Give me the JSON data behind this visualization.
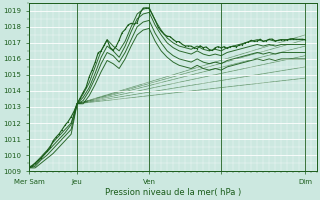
{
  "xlabel": "Pression niveau de la mer( hPa )",
  "ylim": [
    1009,
    1019.5
  ],
  "xlim": [
    0,
    96
  ],
  "yticks": [
    1009,
    1010,
    1011,
    1012,
    1013,
    1014,
    1015,
    1016,
    1017,
    1018,
    1019
  ],
  "xtick_positions": [
    0,
    16,
    40,
    64,
    92
  ],
  "xtick_labels": [
    "Mer Sam",
    "Jeu",
    "Ven",
    "",
    "Dim"
  ],
  "bg_color": "#cce8e0",
  "line_color": "#1a5c1a",
  "fan_lines": [
    {
      "x": [
        16,
        92
      ],
      "y": [
        1013.2,
        1014.8
      ]
    },
    {
      "x": [
        16,
        92
      ],
      "y": [
        1013.2,
        1015.5
      ]
    },
    {
      "x": [
        16,
        92
      ],
      "y": [
        1013.2,
        1016.2
      ]
    },
    {
      "x": [
        16,
        92
      ],
      "y": [
        1013.2,
        1016.8
      ]
    },
    {
      "x": [
        16,
        92
      ],
      "y": [
        1013.2,
        1017.2
      ]
    },
    {
      "x": [
        16,
        92
      ],
      "y": [
        1013.2,
        1017.5
      ]
    }
  ],
  "ensemble_lines": [
    {
      "x": [
        0,
        2,
        4,
        6,
        8,
        10,
        12,
        14,
        16,
        18,
        20,
        22,
        24,
        26,
        28,
        30,
        32,
        34,
        36,
        38,
        40,
        42,
        44,
        46,
        48,
        50,
        52,
        54,
        56,
        58,
        60,
        62,
        64,
        66,
        68,
        70,
        72,
        74,
        76,
        78,
        80,
        82,
        84,
        86,
        88,
        90,
        92
      ],
      "y": [
        1009.2,
        1009.5,
        1009.9,
        1010.3,
        1010.8,
        1011.2,
        1011.6,
        1012.0,
        1013.2,
        1013.8,
        1014.5,
        1015.5,
        1016.5,
        1017.2,
        1016.8,
        1016.5,
        1017.1,
        1018.0,
        1018.8,
        1019.1,
        1019.2,
        1018.4,
        1017.8,
        1017.3,
        1017.0,
        1016.8,
        1016.7,
        1016.6,
        1016.8,
        1016.6,
        1016.5,
        1016.6,
        1016.5,
        1016.7,
        1016.8,
        1016.9,
        1017.0,
        1017.1,
        1017.2,
        1017.1,
        1017.2,
        1017.1,
        1017.2,
        1017.2,
        1017.2,
        1017.2,
        1017.2
      ]
    },
    {
      "x": [
        0,
        2,
        4,
        6,
        8,
        10,
        12,
        14,
        16,
        18,
        20,
        22,
        24,
        26,
        28,
        30,
        32,
        34,
        36,
        38,
        40,
        42,
        44,
        46,
        48,
        50,
        52,
        54,
        56,
        58,
        60,
        62,
        64,
        66,
        68,
        70,
        72,
        74,
        76,
        78,
        80,
        82,
        84,
        86,
        88,
        90,
        92
      ],
      "y": [
        1009.2,
        1009.4,
        1009.8,
        1010.2,
        1010.6,
        1011.0,
        1011.4,
        1011.9,
        1013.2,
        1013.6,
        1014.2,
        1015.1,
        1016.1,
        1016.8,
        1016.5,
        1016.1,
        1016.8,
        1017.7,
        1018.5,
        1018.8,
        1018.9,
        1018.1,
        1017.5,
        1017.0,
        1016.7,
        1016.5,
        1016.4,
        1016.3,
        1016.5,
        1016.3,
        1016.2,
        1016.3,
        1016.2,
        1016.4,
        1016.5,
        1016.6,
        1016.7,
        1016.8,
        1016.9,
        1016.8,
        1016.9,
        1016.8,
        1016.9,
        1016.9,
        1016.9,
        1016.9,
        1016.9
      ]
    },
    {
      "x": [
        0,
        2,
        4,
        6,
        8,
        10,
        12,
        14,
        16,
        18,
        20,
        22,
        24,
        26,
        28,
        30,
        32,
        34,
        36,
        38,
        40,
        42,
        44,
        46,
        48,
        50,
        52,
        54,
        56,
        58,
        60,
        62,
        64,
        66,
        68,
        70,
        72,
        74,
        76,
        78,
        80,
        82,
        84,
        86,
        88,
        90,
        92
      ],
      "y": [
        1009.2,
        1009.3,
        1009.7,
        1010.0,
        1010.4,
        1010.8,
        1011.2,
        1011.6,
        1013.2,
        1013.4,
        1014.0,
        1014.8,
        1015.7,
        1016.4,
        1016.2,
        1015.8,
        1016.4,
        1017.2,
        1018.0,
        1018.3,
        1018.4,
        1017.6,
        1017.0,
        1016.5,
        1016.2,
        1016.0,
        1015.9,
        1015.8,
        1016.0,
        1015.8,
        1015.7,
        1015.8,
        1015.7,
        1015.9,
        1016.0,
        1016.1,
        1016.2,
        1016.3,
        1016.4,
        1016.3,
        1016.4,
        1016.3,
        1016.4,
        1016.4,
        1016.4,
        1016.4,
        1016.4
      ]
    },
    {
      "x": [
        0,
        2,
        4,
        6,
        8,
        10,
        12,
        14,
        16,
        18,
        20,
        22,
        24,
        26,
        28,
        30,
        32,
        34,
        36,
        38,
        40,
        42,
        44,
        46,
        48,
        50,
        52,
        54,
        56,
        58,
        60,
        62,
        64,
        66,
        68,
        70,
        72,
        74,
        76,
        78,
        80,
        82,
        84,
        86,
        88,
        90,
        92
      ],
      "y": [
        1009.2,
        1009.2,
        1009.5,
        1009.8,
        1010.1,
        1010.5,
        1010.9,
        1011.3,
        1013.2,
        1013.2,
        1013.7,
        1014.4,
        1015.2,
        1015.9,
        1015.7,
        1015.4,
        1016.0,
        1016.8,
        1017.5,
        1017.8,
        1017.9,
        1017.1,
        1016.5,
        1016.1,
        1015.8,
        1015.6,
        1015.5,
        1015.4,
        1015.6,
        1015.4,
        1015.3,
        1015.4,
        1015.3,
        1015.5,
        1015.6,
        1015.7,
        1015.8,
        1015.9,
        1016.0,
        1015.9,
        1016.0,
        1015.9,
        1016.0,
        1016.0,
        1016.0,
        1016.0,
        1016.0
      ]
    }
  ],
  "main_line_x": [
    0,
    1,
    2,
    3,
    4,
    5,
    6,
    7,
    8,
    9,
    10,
    11,
    12,
    13,
    14,
    15,
    16,
    17,
    18,
    19,
    20,
    21,
    22,
    23,
    24,
    25,
    26,
    27,
    28,
    29,
    30,
    31,
    32,
    33,
    34,
    35,
    36,
    37,
    38,
    39,
    40,
    41,
    42,
    43,
    44,
    45,
    46,
    47,
    48,
    49,
    50,
    51,
    52,
    53,
    54,
    55,
    56,
    57,
    58,
    59,
    60,
    61,
    62,
    63,
    64,
    65,
    66,
    67,
    68,
    69,
    70,
    71,
    72,
    73,
    74,
    75,
    76,
    77,
    78,
    79,
    80,
    81,
    82,
    83,
    84,
    85,
    86,
    87,
    88,
    89,
    90,
    91,
    92
  ],
  "main_line_y_base": [
    1009.2,
    1009.35,
    1009.5,
    1009.65,
    1009.85,
    1010.05,
    1010.25,
    1010.55,
    1010.85,
    1011.1,
    1011.35,
    1011.6,
    1011.85,
    1012.1,
    1012.4,
    1012.8,
    1013.2,
    1013.55,
    1013.9,
    1014.3,
    1014.8,
    1015.3,
    1015.8,
    1016.3,
    1016.5,
    1016.9,
    1017.2,
    1016.8,
    1016.5,
    1016.8,
    1017.2,
    1017.6,
    1017.9,
    1018.1,
    1018.3,
    1018.2,
    1018.3,
    1018.8,
    1019.1,
    1019.2,
    1019.1,
    1018.8,
    1018.4,
    1018.0,
    1017.8,
    1017.6,
    1017.4,
    1017.3,
    1017.2,
    1017.1,
    1017.0,
    1016.9,
    1016.8,
    1016.8,
    1016.8,
    1016.7,
    1016.7,
    1016.8,
    1016.7,
    1016.7,
    1016.6,
    1016.6,
    1016.7,
    1016.7,
    1016.7,
    1016.8,
    1016.7,
    1016.8,
    1016.8,
    1016.8,
    1016.8,
    1016.9,
    1017.0,
    1017.0,
    1017.1,
    1017.1,
    1017.1,
    1017.2,
    1017.1,
    1017.2,
    1017.2,
    1017.2,
    1017.1,
    1017.2,
    1017.2,
    1017.2,
    1017.2,
    1017.2,
    1017.2,
    1017.2,
    1017.2,
    1017.2,
    1017.2
  ]
}
